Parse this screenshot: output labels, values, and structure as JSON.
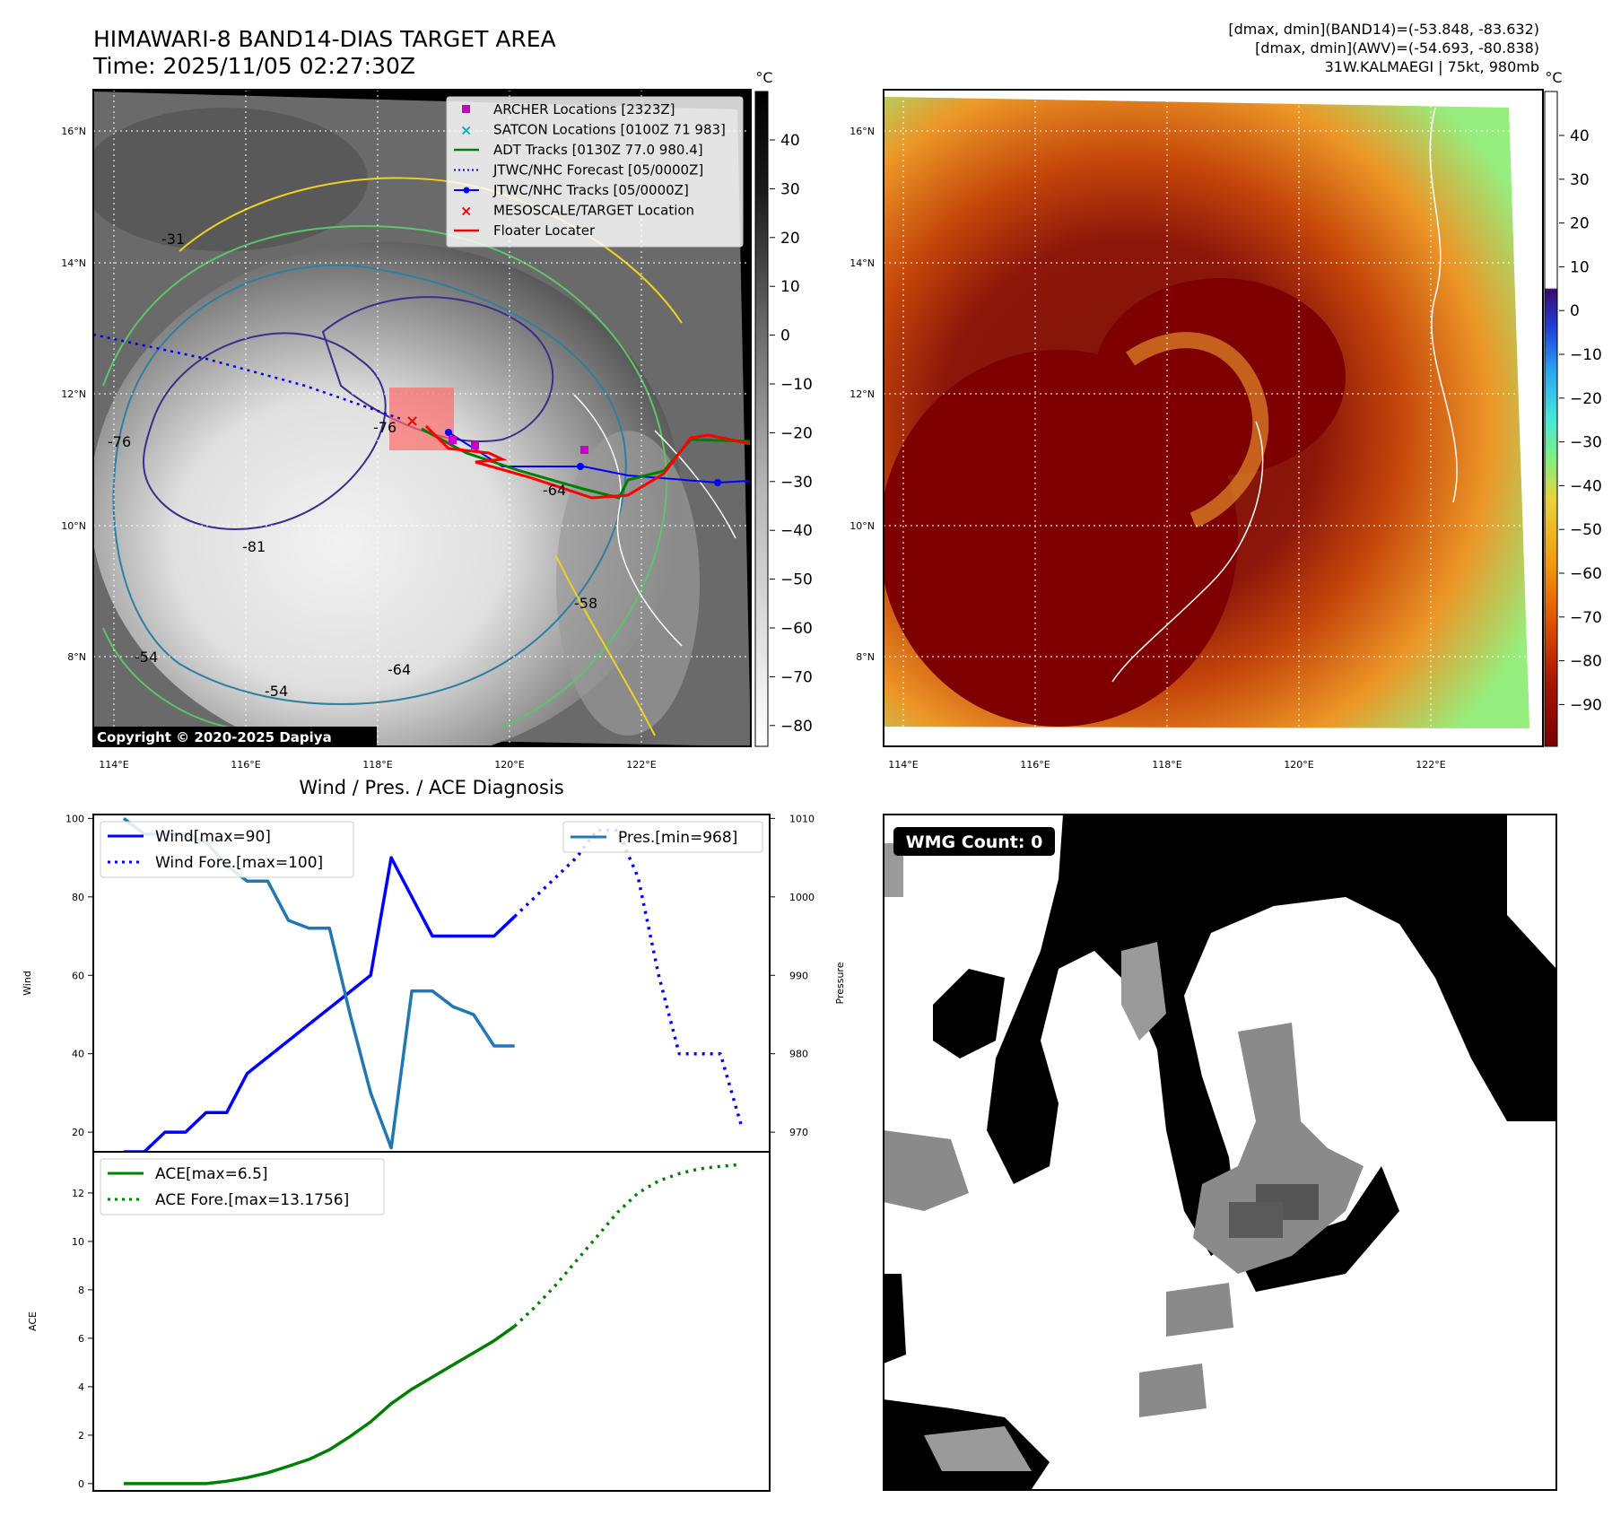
{
  "header": {
    "title": "HIMAWARI-8 BAND14-DIAS TARGET AREA",
    "time": "Time: 2025/11/05 02:27:30Z",
    "info_line1": "[dmax, dmin](BAND14)=(-53.848, -83.632)",
    "info_line2": "[dmax, dmin](AWV)=(-54.693, -80.838)",
    "info_line3": "31W.KALMAEGI | 75kt, 980mb"
  },
  "map_axes": {
    "lon_ticks": [
      "114°E",
      "116°E",
      "118°E",
      "120°E",
      "122°E"
    ],
    "lat_ticks": [
      "16°N",
      "14°N",
      "12°N",
      "10°N",
      "8°N"
    ],
    "lon_range": [
      113.7,
      123.6
    ],
    "lat_range": [
      6.8,
      16.6
    ]
  },
  "legend": {
    "items": [
      {
        "label": "ARCHER Locations [2323Z]",
        "color": "#c800c8",
        "marker": "square"
      },
      {
        "label": "SATCON Locations [0100Z 71 983]",
        "color": "#00b5b5",
        "marker": "x"
      },
      {
        "label": "ADT Tracks [0130Z 77.0 980.4]",
        "color": "#008000",
        "marker": "line"
      },
      {
        "label": "JTWC/NHC Forecast [05/0000Z]",
        "color": "#0000ff",
        "marker": "dotted"
      },
      {
        "label": "JTWC/NHC Tracks [05/0000Z]",
        "color": "#0000ff",
        "marker": "line-dot"
      },
      {
        "label": "MESOSCALE/TARGET Location",
        "color": "#ff0000",
        "marker": "x"
      },
      {
        "label": "Floater Locater",
        "color": "#ff0000",
        "marker": "line"
      }
    ]
  },
  "contour_labels": [
    "-31",
    "-76",
    "-81",
    "-54",
    "-54",
    "-64",
    "-76",
    "-64",
    "-58"
  ],
  "copyright": "Copyright © 2020-2025 Dapiya",
  "colorbar_left": {
    "unit": "°C",
    "ticks": [
      "40",
      "30",
      "20",
      "10",
      "0",
      "−10",
      "−20",
      "−30",
      "−40",
      "−50",
      "−60",
      "−70",
      "−80"
    ]
  },
  "colorbar_right": {
    "unit": "°C",
    "ticks": [
      "40",
      "30",
      "20",
      "10",
      "0",
      "−10",
      "−20",
      "−30",
      "−40",
      "−50",
      "−60",
      "−70",
      "−80",
      "−90"
    ]
  },
  "wmg": {
    "label": "WMG Count: 0"
  },
  "chart_data": [
    {
      "type": "line",
      "title": "Wind / Pres. / ACE Diagnosis",
      "ylabel": "Wind",
      "y2label": "Pressure",
      "ylim": [
        15,
        101
      ],
      "y2lim": [
        967.5,
        1010.5
      ],
      "y_ticks": [
        "100",
        "80",
        "60",
        "40",
        "20"
      ],
      "y2_ticks": [
        "1010",
        "1000",
        "990",
        "980",
        "970"
      ],
      "series": [
        {
          "name": "Wind[max=90]",
          "color": "#0000ff",
          "style": "solid",
          "x": [
            0,
            1,
            2,
            3,
            4,
            5,
            6,
            12,
            13,
            15,
            16,
            17,
            18,
            19
          ],
          "values": [
            15,
            15,
            20,
            20,
            25,
            25,
            35,
            60,
            90,
            70,
            70,
            70,
            70,
            75
          ]
        },
        {
          "name": "Wind Fore.[max=100]",
          "color": "#0000ff",
          "style": "dotted",
          "x": [
            19,
            20,
            21,
            22,
            23,
            24,
            25,
            26,
            27,
            28,
            29,
            30
          ],
          "values": [
            75,
            80,
            85,
            90,
            97,
            97,
            85,
            60,
            40,
            40,
            40,
            22
          ]
        },
        {
          "name": "Pres.[min=968]",
          "color": "#1f77b4",
          "style": "solid",
          "axis": "y2",
          "x": [
            0,
            1,
            2,
            3,
            4,
            5,
            6,
            7,
            8,
            9,
            10,
            11,
            12,
            13,
            14,
            15,
            16,
            17,
            18,
            19
          ],
          "values": [
            1010,
            1008,
            1008,
            1008,
            1007,
            1004,
            1002,
            1002,
            997,
            996,
            996,
            985,
            975,
            968,
            988,
            988,
            986,
            985,
            981,
            981
          ]
        }
      ]
    },
    {
      "type": "line",
      "ylabel": "ACE",
      "ylim": [
        -0.3,
        13.7
      ],
      "y_ticks": [
        "12",
        "10",
        "8",
        "6",
        "4",
        "2",
        "0"
      ],
      "series": [
        {
          "name": "ACE[max=6.5]",
          "color": "#008000",
          "style": "solid",
          "x": [
            0,
            1,
            2,
            3,
            4,
            5,
            6,
            7,
            8,
            9,
            10,
            11,
            12,
            13,
            14,
            15,
            16,
            17,
            18,
            19
          ],
          "values": [
            0,
            0,
            0,
            0,
            0,
            0.1,
            0.25,
            0.45,
            0.72,
            1.0,
            1.4,
            1.95,
            2.55,
            3.3,
            3.9,
            4.4,
            4.9,
            5.4,
            5.9,
            6.5
          ]
        },
        {
          "name": "ACE Fore.[max=13.1756]",
          "color": "#008000",
          "style": "dotted",
          "x": [
            19,
            20,
            21,
            22,
            23,
            24,
            25,
            26,
            27,
            28,
            29,
            30
          ],
          "values": [
            6.5,
            7.3,
            8.2,
            9.2,
            10.2,
            11.2,
            12.0,
            12.5,
            12.8,
            13.0,
            13.1,
            13.1756
          ]
        }
      ]
    }
  ]
}
